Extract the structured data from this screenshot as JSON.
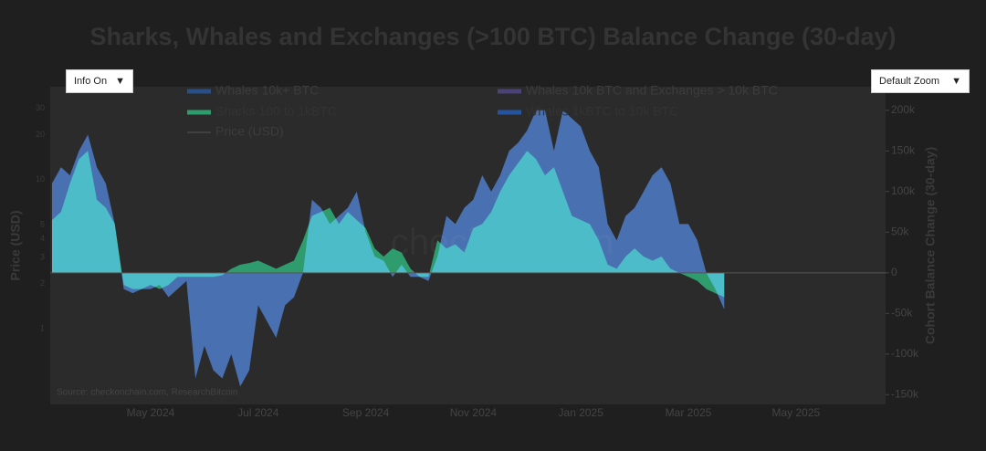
{
  "chart_data": {
    "type": "area",
    "title": "Sharks, Whales and Exchanges (>100 BTC) Balance Change (30-day)",
    "controls": {
      "info": "Info On",
      "zoom": "Default Zoom"
    },
    "watermark": "checkonchain",
    "source": "Source: checkonchain.com, ResearchBitcoin",
    "ylabel": "Price (USD)",
    "y2label": "Cohort Balance Change (30-day)",
    "ylog": true,
    "ylim": [
      0.31,
      42
    ],
    "yticks": [
      1,
      2,
      3,
      4,
      5,
      10,
      20,
      30
    ],
    "y2lim": [
      -162000,
      229000
    ],
    "y2ticks": [
      {
        "value": -150000,
        "label": "-150k"
      },
      {
        "value": -100000,
        "label": "-100k"
      },
      {
        "value": -50000,
        "label": "-50k"
      },
      0,
      {
        "value": 50000,
        "label": "50k"
      },
      {
        "value": 100000,
        "label": "100k"
      },
      {
        "value": 150000,
        "label": "150k"
      },
      {
        "value": 200000,
        "label": "200k"
      }
    ],
    "categories": [
      null,
      null,
      null,
      null,
      null,
      null,
      null,
      null,
      null,
      null,
      null,
      "May 2024",
      null,
      null,
      null,
      null,
      null,
      null,
      null,
      null,
      null,
      null,
      null,
      "Jul 2024",
      null,
      null,
      null,
      null,
      null,
      null,
      null,
      null,
      null,
      null,
      null,
      "Sep 2024",
      null,
      null,
      null,
      null,
      null,
      null,
      null,
      null,
      null,
      null,
      null,
      "Nov 2024",
      null,
      null,
      null,
      null,
      null,
      null,
      null,
      null,
      null,
      null,
      null,
      "Jan 2025",
      null,
      null,
      null,
      null,
      null,
      null,
      null,
      null,
      null,
      null,
      null,
      "Mar 2025",
      null,
      null,
      null,
      null,
      null,
      null,
      null,
      null,
      null,
      null,
      null,
      "May 2025",
      null,
      null,
      null,
      null,
      null,
      null,
      null,
      null,
      null,
      null
    ],
    "series": [
      {
        "name": "Whales 10k+ BTC",
        "color": "#2a4f86",
        "visible": false
      },
      {
        "name": "Whales 10k BTC and Exchanges > 10k BTC",
        "color": "#4b4275",
        "visible": false
      },
      {
        "name": "Sharks 100 to 1kBTC",
        "color": "#2e9c6c",
        "axis": "y2",
        "values": [
          65000,
          75000,
          110000,
          140000,
          150000,
          90000,
          80000,
          60000,
          -15000,
          -20000,
          -20000,
          -15000,
          -20000,
          -15000,
          -5000,
          -5000,
          -5000,
          -5000,
          -5000,
          -3000,
          5000,
          10000,
          12000,
          15000,
          10000,
          5000,
          10000,
          15000,
          40000,
          70000,
          75000,
          80000,
          60000,
          75000,
          65000,
          55000,
          30000,
          20000,
          30000,
          25000,
          5000,
          -5000,
          -5000,
          40000,
          30000,
          35000,
          25000,
          55000,
          60000,
          75000,
          100000,
          120000,
          135000,
          150000,
          140000,
          120000,
          130000,
          100000,
          70000,
          65000,
          60000,
          40000,
          10000,
          5000,
          20000,
          30000,
          20000,
          15000,
          20000,
          5000,
          0,
          -5000,
          -10000,
          -20000,
          -25000,
          -30000,
          null,
          null,
          null,
          null,
          null,
          null,
          null,
          null,
          null,
          null,
          null,
          null,
          null,
          null,
          null,
          null,
          null,
          null
        ]
      },
      {
        "name": "Whales 1kBTC to 10k BTC",
        "color": "#2453a0",
        "axis": "y2",
        "values": [
          110000,
          130000,
          120000,
          150000,
          170000,
          130000,
          110000,
          60000,
          -20000,
          -25000,
          -20000,
          -20000,
          -15000,
          -30000,
          -20000,
          -10000,
          -130000,
          -90000,
          -120000,
          -130000,
          -100000,
          -140000,
          -120000,
          -40000,
          -60000,
          -80000,
          -40000,
          -30000,
          0,
          90000,
          80000,
          60000,
          70000,
          80000,
          100000,
          50000,
          20000,
          15000,
          -5000,
          10000,
          -5000,
          -5000,
          -10000,
          20000,
          70000,
          60000,
          80000,
          90000,
          120000,
          100000,
          120000,
          150000,
          160000,
          175000,
          200000,
          200000,
          150000,
          200000,
          190000,
          180000,
          150000,
          130000,
          60000,
          40000,
          70000,
          80000,
          100000,
          120000,
          130000,
          110000,
          60000,
          60000,
          40000,
          0,
          -20000,
          -45000,
          null,
          null,
          null,
          null,
          null,
          null,
          null,
          null,
          null,
          null,
          null,
          null,
          null,
          null,
          null,
          null,
          null,
          null
        ]
      },
      {
        "name": "Price (USD)",
        "color": "#555555",
        "visible": false
      }
    ]
  }
}
